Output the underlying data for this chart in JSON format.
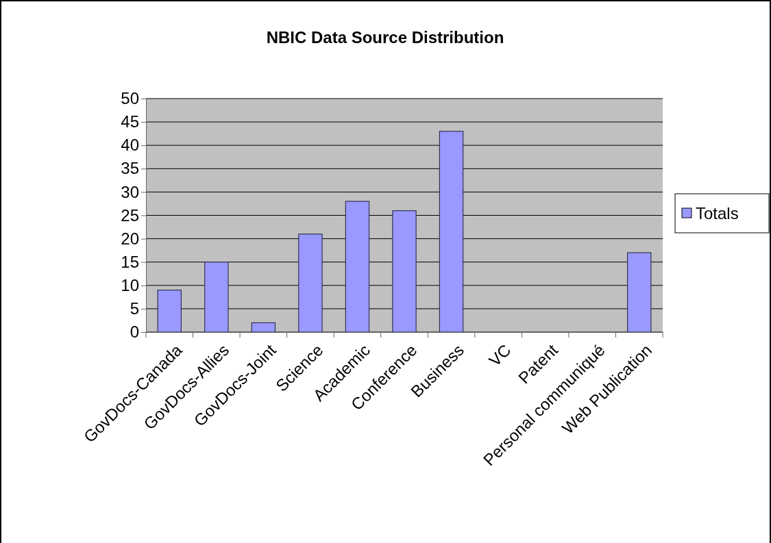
{
  "chart_data": {
    "type": "bar",
    "title": "NBIC Data Source Distribution",
    "categories": [
      "GovDocs-Canada",
      "GovDocs-Allies",
      "GovDocs-Joint",
      "Science",
      "Academic",
      "Conference",
      "Business",
      "VC",
      "Patent",
      "Personal communiqué",
      "Web Publication"
    ],
    "series": [
      {
        "name": "Totals",
        "color": "#9999ff",
        "values": [
          9,
          15,
          2,
          21,
          28,
          26,
          43,
          0,
          0,
          0,
          17
        ]
      }
    ],
    "ylim": [
      0,
      50
    ],
    "yticks": [
      0,
      5,
      10,
      15,
      20,
      25,
      30,
      35,
      40,
      45,
      50
    ],
    "grid": "y",
    "legend": "right"
  }
}
